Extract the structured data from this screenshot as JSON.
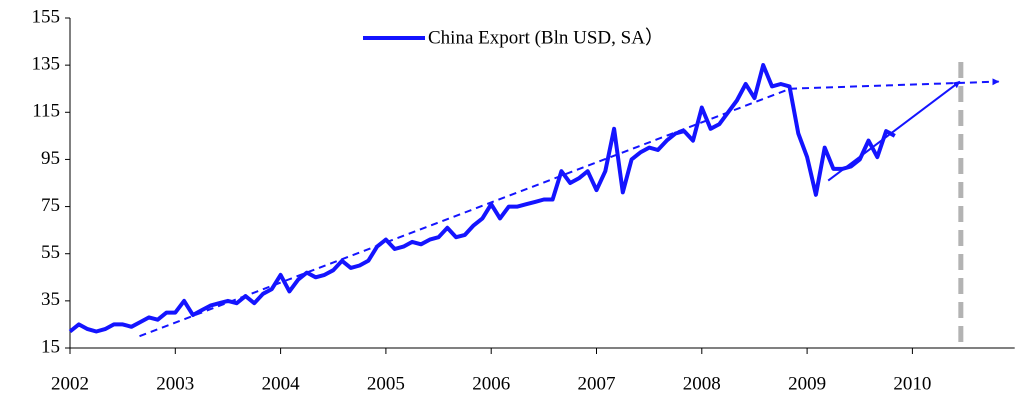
{
  "chart_data": {
    "type": "line",
    "x": [
      2002,
      2002.0833,
      2002.1667,
      2002.25,
      2002.3333,
      2002.4167,
      2002.5,
      2002.5833,
      2002.6667,
      2002.75,
      2002.8333,
      2002.9167,
      2003,
      2003.0833,
      2003.1667,
      2003.25,
      2003.3333,
      2003.4167,
      2003.5,
      2003.5833,
      2003.6667,
      2003.75,
      2003.8333,
      2003.9167,
      2004,
      2004.0833,
      2004.1667,
      2004.25,
      2004.3333,
      2004.4167,
      2004.5,
      2004.5833,
      2004.6667,
      2004.75,
      2004.8333,
      2004.9167,
      2005,
      2005.0833,
      2005.1667,
      2005.25,
      2005.3333,
      2005.4167,
      2005.5,
      2005.5833,
      2005.6667,
      2005.75,
      2005.8333,
      2005.9167,
      2006,
      2006.0833,
      2006.1667,
      2006.25,
      2006.3333,
      2006.4167,
      2006.5,
      2006.5833,
      2006.6667,
      2006.75,
      2006.8333,
      2006.9167,
      2007,
      2007.0833,
      2007.1667,
      2007.25,
      2007.3333,
      2007.4167,
      2007.5,
      2007.5833,
      2007.6667,
      2007.75,
      2007.8333,
      2007.9167,
      2008,
      2008.0833,
      2008.1667,
      2008.25,
      2008.3333,
      2008.4167,
      2008.5,
      2008.5833,
      2008.6667,
      2008.75,
      2008.8333,
      2008.9167,
      2009,
      2009.0833,
      2009.1667,
      2009.25,
      2009.3333,
      2009.4167,
      2009.5,
      2009.5833,
      2009.6667,
      2009.75,
      2009.8333
    ],
    "series": [
      {
        "name": "China Export (Bln USD, SA）",
        "color": "#1414ff",
        "values": [
          22,
          25,
          23,
          22,
          23,
          25,
          25,
          24,
          26,
          28,
          27,
          30,
          30,
          35,
          29,
          31,
          33,
          34,
          35,
          34,
          37,
          34,
          38,
          40,
          46,
          39,
          44,
          47,
          45,
          46,
          48,
          52,
          49,
          50,
          52,
          58,
          61,
          57,
          58,
          60,
          59,
          61,
          62,
          66,
          62,
          63,
          67,
          70,
          76,
          70,
          75,
          75,
          76,
          77,
          78,
          78,
          90,
          85,
          87,
          90,
          82,
          90,
          108,
          81,
          95,
          98,
          100,
          99,
          103,
          106,
          107,
          103,
          117,
          108,
          110,
          115,
          120,
          127,
          121,
          135,
          126,
          127,
          126,
          106,
          96,
          80,
          100,
          91,
          91,
          92,
          95,
          103,
          96,
          107,
          105
        ]
      }
    ],
    "xlim": [
      2002,
      2011
    ],
    "xticks": [
      2002,
      2003,
      2004,
      2005,
      2006,
      2007,
      2008,
      2009,
      2010
    ],
    "ylim": [
      15,
      155
    ],
    "yticks": [
      15,
      35,
      55,
      75,
      95,
      115,
      135,
      155
    ],
    "grid": false,
    "legend": "top",
    "trend_lines": [
      {
        "x": [
          2002.66,
          2008.84,
          2010.82
        ],
        "y": [
          20,
          125,
          128
        ],
        "style": "dashed",
        "color": "#1414ff"
      },
      {
        "x": [
          2009.2,
          2010.45
        ],
        "y": [
          86,
          128
        ],
        "style": "solid",
        "color": "#1414ff"
      }
    ],
    "marker_line": {
      "x": 2010.46,
      "color": "#b3b3b3"
    }
  }
}
